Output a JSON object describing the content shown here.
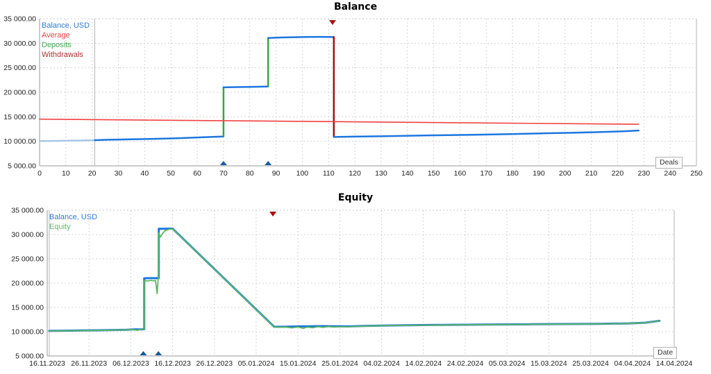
{
  "chart_data": [
    {
      "type": "line",
      "title": "Balance",
      "xlabel": "Deals",
      "ylabel": "",
      "xlim": [
        0,
        250
      ],
      "ylim": [
        5000,
        35000
      ],
      "grid": true,
      "legend_position": "top-left",
      "x_tick_labels": [
        "0",
        "10",
        "20",
        "30",
        "40",
        "50",
        "60",
        "70",
        "80",
        "90",
        "100",
        "110",
        "120",
        "130",
        "140",
        "150",
        "160",
        "170",
        "180",
        "190",
        "200",
        "210",
        "220",
        "230",
        "240",
        "250"
      ],
      "y_tick_values": [
        35000,
        30000,
        25000,
        20000,
        15000,
        10000,
        5000
      ],
      "y_tick_labels": [
        "35 000.00",
        "30 000.00",
        "25 000.00",
        "20 000.00",
        "15 000.00",
        "10 000.00",
        "5 000.00"
      ],
      "separators": [
        21
      ],
      "legend": [
        {
          "label": "Balance, USD",
          "color": "#2e7bd9"
        },
        {
          "label": "Average",
          "color": "#e84444"
        },
        {
          "label": "Deposits",
          "color": "#3fa64f"
        },
        {
          "label": "Withdrawals",
          "color": "#b03030"
        }
      ],
      "series": [
        {
          "name": "Balance, USD (initial period)",
          "color": "#a9c7e8",
          "width": 2.5,
          "points": [
            [
              0,
              10050
            ],
            [
              5,
              10080
            ],
            [
              10,
              10120
            ],
            [
              15,
              10170
            ],
            [
              21,
              10240
            ]
          ]
        },
        {
          "name": "Balance, USD",
          "color": "#1b76e0",
          "width": 2.5,
          "points": [
            [
              21,
              10240
            ],
            [
              25,
              10300
            ],
            [
              30,
              10360
            ],
            [
              35,
              10410
            ],
            [
              40,
              10460
            ],
            [
              45,
              10520
            ],
            [
              50,
              10590
            ],
            [
              55,
              10680
            ],
            [
              60,
              10790
            ],
            [
              65,
              10890
            ],
            [
              70,
              10990
            ]
          ]
        },
        {
          "name": "Deposit 1",
          "color": "#3aa348",
          "width": 2.5,
          "points": [
            [
              70,
              10990
            ],
            [
              70,
              21000
            ]
          ]
        },
        {
          "name": "Balance, USD",
          "color": "#1b76e0",
          "width": 2.5,
          "points": [
            [
              70,
              21000
            ],
            [
              75,
              21060
            ],
            [
              80,
              21110
            ],
            [
              87,
              21190
            ]
          ]
        },
        {
          "name": "Deposit 2",
          "color": "#3aa348",
          "width": 2.5,
          "points": [
            [
              87,
              21190
            ],
            [
              87,
              31080
            ]
          ]
        },
        {
          "name": "Balance, USD",
          "color": "#1b76e0",
          "width": 2.5,
          "points": [
            [
              87,
              31080
            ],
            [
              92,
              31180
            ],
            [
              97,
              31240
            ],
            [
              102,
              31290
            ],
            [
              107,
              31300
            ],
            [
              112,
              31260
            ]
          ]
        },
        {
          "name": "Withdrawal",
          "color": "#9e1212",
          "width": 2.5,
          "points": [
            [
              112,
              31260
            ],
            [
              112,
              10890
            ]
          ]
        },
        {
          "name": "Balance, USD",
          "color": "#1b76e0",
          "width": 2.5,
          "points": [
            [
              112,
              10890
            ],
            [
              118,
              10940
            ],
            [
              125,
              11000
            ],
            [
              132,
              11060
            ],
            [
              139,
              11120
            ],
            [
              146,
              11180
            ],
            [
              153,
              11240
            ],
            [
              160,
              11300
            ],
            [
              167,
              11360
            ],
            [
              174,
              11430
            ],
            [
              181,
              11500
            ],
            [
              188,
              11580
            ],
            [
              195,
              11660
            ],
            [
              202,
              11740
            ],
            [
              209,
              11830
            ],
            [
              216,
              11930
            ],
            [
              222,
              12040
            ],
            [
              228,
              12200
            ]
          ]
        },
        {
          "name": "Average",
          "color": "#f04040",
          "width": 1.6,
          "points": [
            [
              0,
              14520
            ],
            [
              228,
              13480
            ]
          ]
        }
      ],
      "markers": [
        {
          "event": "deposit",
          "x": 70,
          "position": "bottom",
          "dir": "up",
          "color": "#155a9e"
        },
        {
          "event": "deposit",
          "x": 87,
          "position": "bottom",
          "dir": "up",
          "color": "#155a9e"
        },
        {
          "event": "withdrawal",
          "x": 111.5,
          "position": "top",
          "dir": "down",
          "color": "#aa1111"
        }
      ]
    },
    {
      "type": "line",
      "title": "Equity",
      "xlabel": "Date",
      "ylabel": "",
      "xlim": [
        0,
        150
      ],
      "x_unit": "days since 16.11.2023",
      "ylim": [
        5000,
        35000
      ],
      "grid": true,
      "legend_position": "top-left",
      "x_tick_labels": [
        "16.11.2023",
        "26.11.2023",
        "06.12.2023",
        "16.12.2023",
        "26.12.2023",
        "05.01.2024",
        "15.01.2024",
        "25.01.2024",
        "04.02.2024",
        "14.02.2024",
        "24.02.2024",
        "05.03.2024",
        "15.03.2024",
        "25.03.2024",
        "04.04.2024",
        "14.04.2024"
      ],
      "y_tick_values": [
        35000,
        30000,
        25000,
        20000,
        15000,
        10000,
        5000
      ],
      "y_tick_labels": [
        "35 000.00",
        "30 000.00",
        "25 000.00",
        "20 000.00",
        "15 000.00",
        "10 000.00",
        "5 000.00"
      ],
      "separators": [
        0.5
      ],
      "legend": [
        {
          "label": "Balance, USD",
          "color": "#2e7bd9"
        },
        {
          "label": "Equity",
          "color": "#67bb6e"
        }
      ],
      "series": [
        {
          "name": "Balance, USD",
          "color": "#1b76e0",
          "width": 3,
          "points": [
            [
              0.5,
              10150
            ],
            [
              4,
              10200
            ],
            [
              8,
              10240
            ],
            [
              12,
              10290
            ],
            [
              16,
              10340
            ],
            [
              19,
              10400
            ],
            [
              21,
              10480
            ],
            [
              22,
              10450
            ],
            [
              23.2,
              10500
            ],
            [
              23.2,
              20980
            ],
            [
              24,
              21020
            ],
            [
              26.7,
              21020
            ],
            [
              26.7,
              31180
            ],
            [
              30,
              31220
            ],
            [
              54.3,
              11000
            ],
            [
              57,
              11020
            ],
            [
              60,
              11080
            ],
            [
              63,
              11120
            ],
            [
              66,
              11140
            ],
            [
              69,
              11100
            ],
            [
              72,
              11080
            ],
            [
              75,
              11150
            ],
            [
              80,
              11260
            ],
            [
              86,
              11320
            ],
            [
              93,
              11380
            ],
            [
              100,
              11430
            ],
            [
              108,
              11480
            ],
            [
              116,
              11530
            ],
            [
              124,
              11570
            ],
            [
              132,
              11620
            ],
            [
              139,
              11700
            ],
            [
              143,
              11850
            ],
            [
              146.5,
              12230
            ]
          ]
        },
        {
          "name": "Equity",
          "color": "#5cb661",
          "width": 1.8,
          "points": [
            [
              0.5,
              10130
            ],
            [
              4,
              10180
            ],
            [
              8,
              10220
            ],
            [
              12,
              10270
            ],
            [
              16,
              10320
            ],
            [
              19,
              10380
            ],
            [
              20.5,
              10460
            ],
            [
              21.5,
              10280
            ],
            [
              22.3,
              10470
            ],
            [
              23.2,
              10480
            ],
            [
              23.2,
              20520
            ],
            [
              24,
              20440
            ],
            [
              24.8,
              20560
            ],
            [
              25.4,
              20460
            ],
            [
              25.9,
              20560
            ],
            [
              26.3,
              17850
            ],
            [
              26.55,
              20900
            ],
            [
              26.7,
              20980
            ],
            [
              26.7,
              30350
            ],
            [
              27.1,
              29480
            ],
            [
              27.6,
              30250
            ],
            [
              28.2,
              30800
            ],
            [
              29,
              31050
            ],
            [
              30,
              31180
            ],
            [
              54.3,
              10960
            ],
            [
              55.5,
              10900
            ],
            [
              57,
              10960
            ],
            [
              58.5,
              10780
            ],
            [
              60,
              10960
            ],
            [
              61.3,
              10680
            ],
            [
              62.2,
              10940
            ],
            [
              63.5,
              10820
            ],
            [
              64.8,
              11020
            ],
            [
              66,
              10900
            ],
            [
              67.3,
              11060
            ],
            [
              68.5,
              10960
            ],
            [
              70,
              11000
            ],
            [
              72,
              11020
            ],
            [
              75,
              11120
            ],
            [
              80,
              11240
            ],
            [
              86,
              11300
            ],
            [
              93,
              11360
            ],
            [
              100,
              11410
            ],
            [
              108,
              11460
            ],
            [
              116,
              11510
            ],
            [
              124,
              11550
            ],
            [
              132,
              11600
            ],
            [
              139,
              11680
            ],
            [
              143,
              11830
            ],
            [
              146.5,
              12210
            ]
          ]
        }
      ],
      "markers": [
        {
          "event": "deposit",
          "x": 23,
          "position": "bottom",
          "dir": "up",
          "color": "#155a9e"
        },
        {
          "event": "deposit",
          "x": 26.6,
          "position": "bottom",
          "dir": "up",
          "color": "#155a9e"
        },
        {
          "event": "withdrawal",
          "x": 54,
          "position": "top",
          "dir": "down",
          "color": "#aa1111"
        }
      ]
    }
  ]
}
